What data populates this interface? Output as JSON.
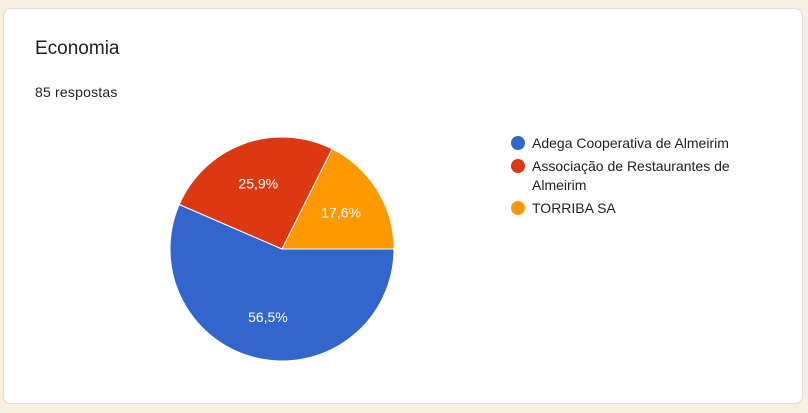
{
  "card": {
    "title": "Economia",
    "responses": "85 respostas"
  },
  "chart_data": {
    "type": "pie",
    "categories": [
      "Adega Cooperativa de Almeirim",
      "Associação de Restaurantes de Almeirim",
      "TORRIBA SA"
    ],
    "values": [
      56.5,
      25.9,
      17.6
    ],
    "labels": [
      "56,5%",
      "25,9%",
      "17,6%"
    ],
    "colors": [
      "#3366cc",
      "#dc3912",
      "#ff9900"
    ],
    "legend_position": "right"
  }
}
